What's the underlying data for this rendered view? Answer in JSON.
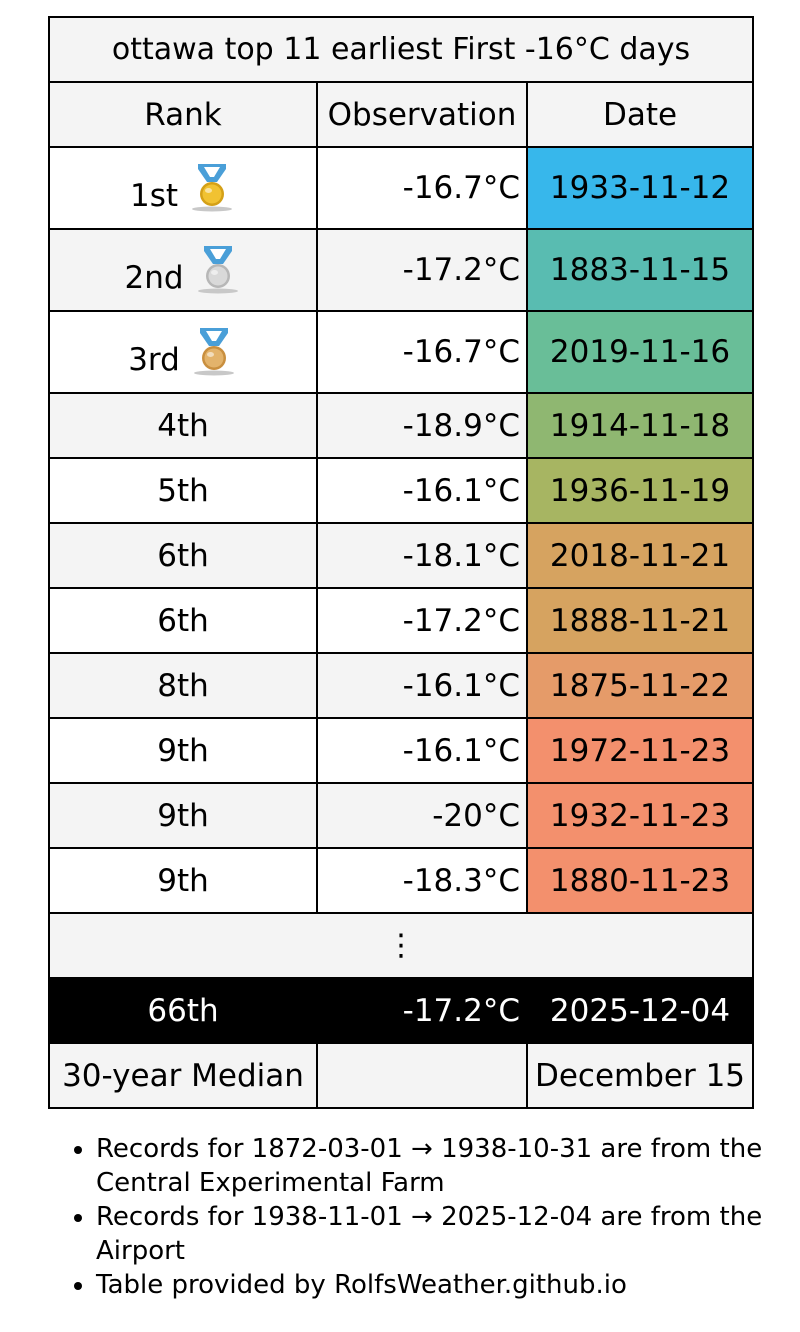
{
  "table": {
    "title": "ottawa top 11 earliest First -16°C days",
    "headers": {
      "rank": "Rank",
      "observation": "Observation",
      "date": "Date"
    },
    "rows": [
      {
        "rank": "1st",
        "observation": "-16.7°C",
        "date": "1933-11-12",
        "color": "#37b7eb",
        "medal": "gold-medal-icon"
      },
      {
        "rank": "2nd",
        "observation": "-17.2°C",
        "date": "1883-11-15",
        "color": "#59bcb1",
        "medal": "silver-medal-icon"
      },
      {
        "rank": "3rd",
        "observation": "-16.7°C",
        "date": "2019-11-16",
        "color": "#69be98",
        "medal": "bronze-medal-icon"
      },
      {
        "rank": "4th",
        "observation": "-18.9°C",
        "date": "1914-11-18",
        "color": "#8fb771"
      },
      {
        "rank": "5th",
        "observation": "-16.1°C",
        "date": "1936-11-19",
        "color": "#a7b562"
      },
      {
        "rank": "6th",
        "observation": "-18.1°C",
        "date": "2018-11-21",
        "color": "#d6a360"
      },
      {
        "rank": "6th",
        "observation": "-17.2°C",
        "date": "1888-11-21",
        "color": "#d6a360"
      },
      {
        "rank": "8th",
        "observation": "-16.1°C",
        "date": "1875-11-22",
        "color": "#e59b69"
      },
      {
        "rank": "9th",
        "observation": "-16.1°C",
        "date": "1972-11-23",
        "color": "#f3906d"
      },
      {
        "rank": "9th",
        "observation": "-20°C",
        "date": "1932-11-23",
        "color": "#f3906d"
      },
      {
        "rank": "9th",
        "observation": "-18.3°C",
        "date": "1880-11-23",
        "color": "#f3906d"
      }
    ],
    "ellipsis": "⋮",
    "current": {
      "rank": "66th",
      "observation": "-17.2°C",
      "date": "2025-12-04"
    },
    "median": {
      "label": "30-year Median",
      "observation": "",
      "date": "December 15"
    }
  },
  "notes": [
    "Records for 1872-03-01 → 1938-10-31 are from the Central Experimental Farm",
    "Records for 1938-11-01 → 2025-12-04 are from the Airport",
    "Table provided by RolfsWeather.github.io"
  ]
}
